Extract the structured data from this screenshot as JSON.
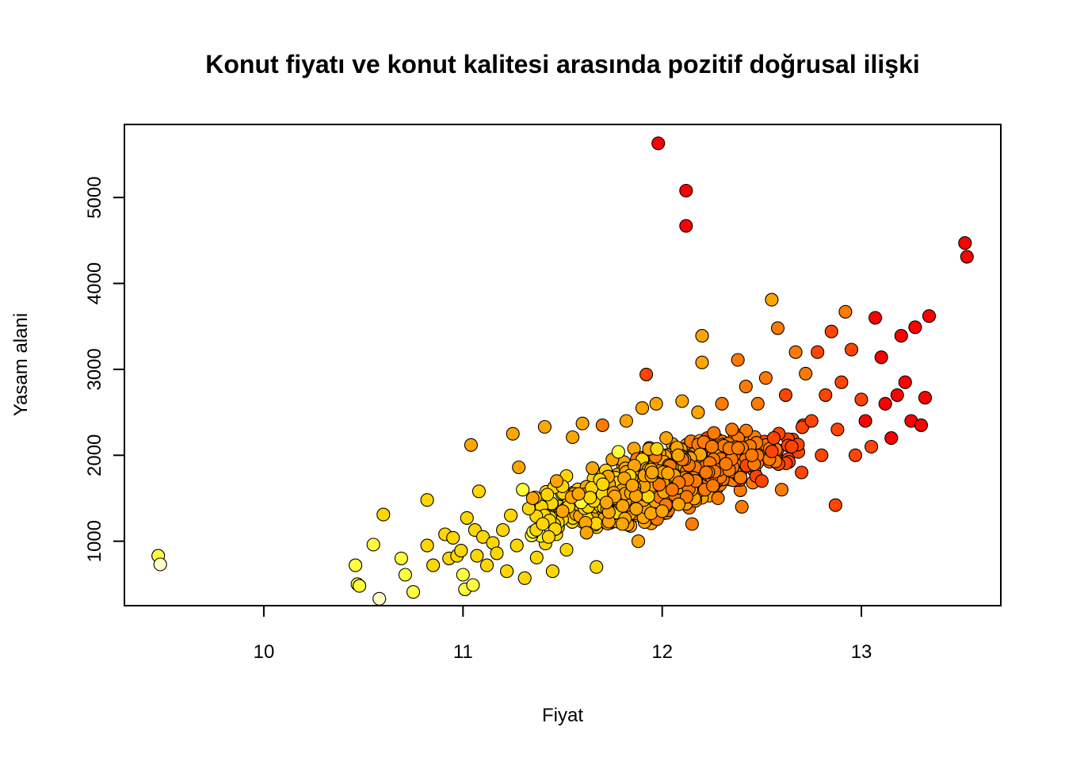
{
  "chart_data": {
    "type": "scatter",
    "title": "Konut fiyatı ve konut kalitesi arasında pozitif doğrusal ilişki",
    "xlabel": "Fiyat",
    "ylabel": "Yasam alani",
    "xlim": [
      9.3,
      13.7
    ],
    "ylim": [
      250,
      5850
    ],
    "xticks": [
      10,
      11,
      12,
      13
    ],
    "yticks": [
      1000,
      2000,
      3000,
      4000,
      5000
    ],
    "grid": false,
    "legend": "none",
    "color_scale": {
      "low": "#ffffc0",
      "mid_low": "#ffe000",
      "mid": "#ffa500",
      "mid_high": "#ff5000",
      "high": "#ff0000"
    },
    "outline_color": "#000000",
    "series": [
      {
        "points": [
          [
            9.47,
            830,
            1
          ],
          [
            9.48,
            730,
            0
          ],
          [
            10.46,
            720,
            1
          ],
          [
            10.47,
            500,
            1
          ],
          [
            10.48,
            480,
            1
          ],
          [
            10.55,
            960,
            1
          ],
          [
            10.58,
            330,
            0
          ],
          [
            10.6,
            1310,
            2
          ],
          [
            10.69,
            800,
            1
          ],
          [
            10.71,
            610,
            1
          ],
          [
            10.75,
            410,
            1
          ],
          [
            10.82,
            950,
            2
          ],
          [
            10.82,
            1480,
            2
          ],
          [
            10.85,
            720,
            2
          ],
          [
            10.91,
            1080,
            2
          ],
          [
            10.93,
            800,
            2
          ],
          [
            10.95,
            1040,
            2
          ],
          [
            10.97,
            830,
            2
          ],
          [
            10.99,
            890,
            2
          ],
          [
            11.0,
            610,
            1
          ],
          [
            11.01,
            440,
            1
          ],
          [
            11.02,
            1270,
            2
          ],
          [
            11.04,
            2120,
            3
          ],
          [
            11.05,
            490,
            1
          ],
          [
            11.06,
            1130,
            2
          ],
          [
            11.07,
            830,
            2
          ],
          [
            11.08,
            1580,
            2
          ],
          [
            11.1,
            1050,
            2
          ],
          [
            11.12,
            720,
            2
          ],
          [
            11.15,
            980,
            2
          ],
          [
            11.17,
            860,
            2
          ],
          [
            11.2,
            1130,
            2
          ],
          [
            11.22,
            650,
            2
          ],
          [
            11.24,
            1300,
            2
          ],
          [
            11.25,
            2250,
            3
          ],
          [
            11.27,
            950,
            2
          ],
          [
            11.28,
            1860,
            3
          ],
          [
            11.3,
            1600,
            1
          ],
          [
            11.31,
            570,
            2
          ],
          [
            11.33,
            1380,
            2
          ],
          [
            11.35,
            1500,
            3
          ],
          [
            11.37,
            810,
            2
          ],
          [
            11.4,
            1200,
            2
          ],
          [
            11.41,
            2330,
            3
          ],
          [
            11.43,
            1050,
            2
          ],
          [
            11.45,
            650,
            2
          ],
          [
            11.47,
            1700,
            3
          ],
          [
            11.5,
            1350,
            3
          ],
          [
            11.52,
            900,
            2
          ],
          [
            11.55,
            2210,
            3
          ],
          [
            11.58,
            1550,
            3
          ],
          [
            11.6,
            2370,
            3
          ],
          [
            11.62,
            1100,
            3
          ],
          [
            11.65,
            1850,
            3
          ],
          [
            11.67,
            700,
            2
          ],
          [
            11.7,
            2350,
            4
          ],
          [
            11.72,
            1450,
            3
          ],
          [
            11.75,
            1950,
            3
          ],
          [
            11.78,
            2040,
            1
          ],
          [
            11.8,
            1200,
            3
          ],
          [
            11.82,
            2400,
            3
          ],
          [
            11.85,
            1650,
            3
          ],
          [
            11.88,
            1000,
            3
          ],
          [
            11.9,
            2550,
            3
          ],
          [
            11.92,
            2940,
            5
          ],
          [
            11.95,
            1800,
            3
          ],
          [
            11.97,
            2600,
            3
          ],
          [
            11.98,
            5630,
            6
          ],
          [
            12.0,
            1350,
            3
          ],
          [
            12.02,
            2200,
            3
          ],
          [
            12.05,
            1600,
            4
          ],
          [
            12.08,
            2000,
            3
          ],
          [
            12.1,
            2630,
            3
          ],
          [
            12.12,
            5080,
            6
          ],
          [
            12.12,
            4670,
            6
          ],
          [
            12.15,
            1200,
            4
          ],
          [
            12.18,
            2500,
            3
          ],
          [
            12.2,
            3390,
            3
          ],
          [
            12.2,
            3080,
            3
          ],
          [
            12.22,
            1800,
            4
          ],
          [
            12.25,
            2100,
            4
          ],
          [
            12.28,
            1500,
            4
          ],
          [
            12.3,
            2600,
            4
          ],
          [
            12.32,
            1900,
            4
          ],
          [
            12.35,
            2300,
            4
          ],
          [
            12.38,
            3110,
            4
          ],
          [
            12.4,
            1400,
            4
          ],
          [
            12.42,
            2800,
            4
          ],
          [
            12.45,
            2000,
            4
          ],
          [
            12.48,
            2600,
            4
          ],
          [
            12.5,
            1700,
            5
          ],
          [
            12.52,
            2900,
            4
          ],
          [
            12.55,
            3810,
            3
          ],
          [
            12.56,
            2200,
            5
          ],
          [
            12.58,
            3480,
            4
          ],
          [
            12.6,
            1600,
            4
          ],
          [
            12.62,
            2700,
            5
          ],
          [
            12.65,
            2100,
            5
          ],
          [
            12.67,
            3200,
            4
          ],
          [
            12.7,
            1800,
            5
          ],
          [
            12.72,
            2950,
            4
          ],
          [
            12.75,
            2400,
            5
          ],
          [
            12.78,
            3200,
            5
          ],
          [
            12.8,
            2000,
            5
          ],
          [
            12.82,
            2700,
            5
          ],
          [
            12.85,
            3440,
            5
          ],
          [
            12.87,
            1420,
            5
          ],
          [
            12.88,
            2300,
            5
          ],
          [
            12.9,
            2850,
            5
          ],
          [
            12.92,
            3670,
            4
          ],
          [
            12.95,
            3230,
            5
          ],
          [
            12.97,
            2000,
            5
          ],
          [
            13.0,
            2650,
            5
          ],
          [
            13.02,
            2400,
            6
          ],
          [
            13.05,
            2100,
            5
          ],
          [
            13.07,
            3600,
            6
          ],
          [
            13.1,
            3140,
            6
          ],
          [
            13.12,
            2600,
            6
          ],
          [
            13.15,
            2200,
            6
          ],
          [
            13.18,
            2700,
            6
          ],
          [
            13.2,
            3390,
            6
          ],
          [
            13.22,
            2850,
            6
          ],
          [
            13.25,
            2400,
            6
          ],
          [
            13.27,
            3490,
            6
          ],
          [
            13.3,
            2350,
            6
          ],
          [
            13.32,
            2670,
            6
          ],
          [
            13.34,
            3620,
            6
          ],
          [
            13.52,
            4470,
            6
          ],
          [
            13.53,
            4310,
            6
          ]
        ]
      }
    ]
  }
}
